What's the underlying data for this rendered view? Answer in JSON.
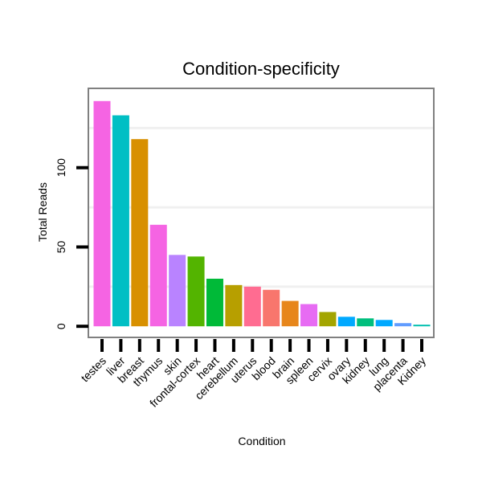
{
  "chart_data": {
    "type": "bar",
    "title": "Condition-specificity",
    "xlabel": "Condition",
    "ylabel": "Total Reads",
    "ylim": [
      -7,
      150
    ],
    "yticks": [
      0,
      50,
      100
    ],
    "ytick_labels": [
      "0",
      "50",
      "100"
    ],
    "grid_values": [
      25,
      75,
      125
    ],
    "categories": [
      "testes",
      "liver",
      "breast",
      "thymus",
      "skin",
      "frontal-cortex",
      "heart",
      "cerebellum",
      "uterus",
      "blood",
      "brain",
      "spleen",
      "cervix",
      "ovary",
      "kidney",
      "lung",
      "placenta",
      "Kidney"
    ],
    "values": [
      142,
      133,
      118,
      64,
      45,
      44,
      30,
      26,
      25,
      23,
      16,
      14,
      9,
      6,
      5,
      4,
      2,
      1
    ],
    "colors": [
      "#f564e3",
      "#00bfc4",
      "#d89000",
      "#f564e3",
      "#b983ff",
      "#53b400",
      "#00ba38",
      "#b79f00",
      "#ff6c91",
      "#f8766d",
      "#e7861b",
      "#e76bf3",
      "#a3a500",
      "#00a9ff",
      "#00bf7d",
      "#00a9ff",
      "#619cff",
      "#00c0af"
    ]
  }
}
